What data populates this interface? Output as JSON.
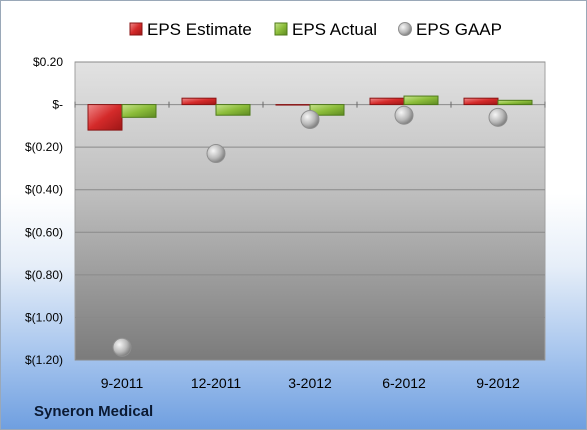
{
  "company_label": "Syneron Medical",
  "colors": {
    "estimate": "#d42a2a",
    "actual": "#8cbd3a",
    "gaap": "#b9b9b9"
  },
  "chart_data": {
    "type": "bar",
    "categories": [
      "9-2011",
      "12-2011",
      "3-2012",
      "6-2012",
      "9-2012"
    ],
    "series": [
      {
        "name": "EPS Estimate",
        "kind": "bar",
        "values": [
          -0.12,
          0.03,
          0.0,
          0.03,
          0.03
        ]
      },
      {
        "name": "EPS Actual",
        "kind": "bar",
        "values": [
          -0.06,
          -0.05,
          -0.05,
          0.04,
          0.02
        ]
      },
      {
        "name": "EPS GAAP",
        "kind": "marker",
        "values": [
          -1.14,
          -0.23,
          -0.07,
          -0.05,
          -0.06
        ]
      }
    ],
    "ylim": [
      -1.2,
      0.2
    ],
    "yticks": [
      0.2,
      0.0,
      -0.2,
      -0.4,
      -0.6,
      -0.8,
      -1.0,
      -1.2
    ],
    "ytick_labels": [
      "$0.20",
      "$-",
      "$(0.20)",
      "$(0.40)",
      "$(0.60)",
      "$(0.80)",
      "$(1.00)",
      "$(1.20)"
    ],
    "grid": true,
    "legend": "top"
  }
}
